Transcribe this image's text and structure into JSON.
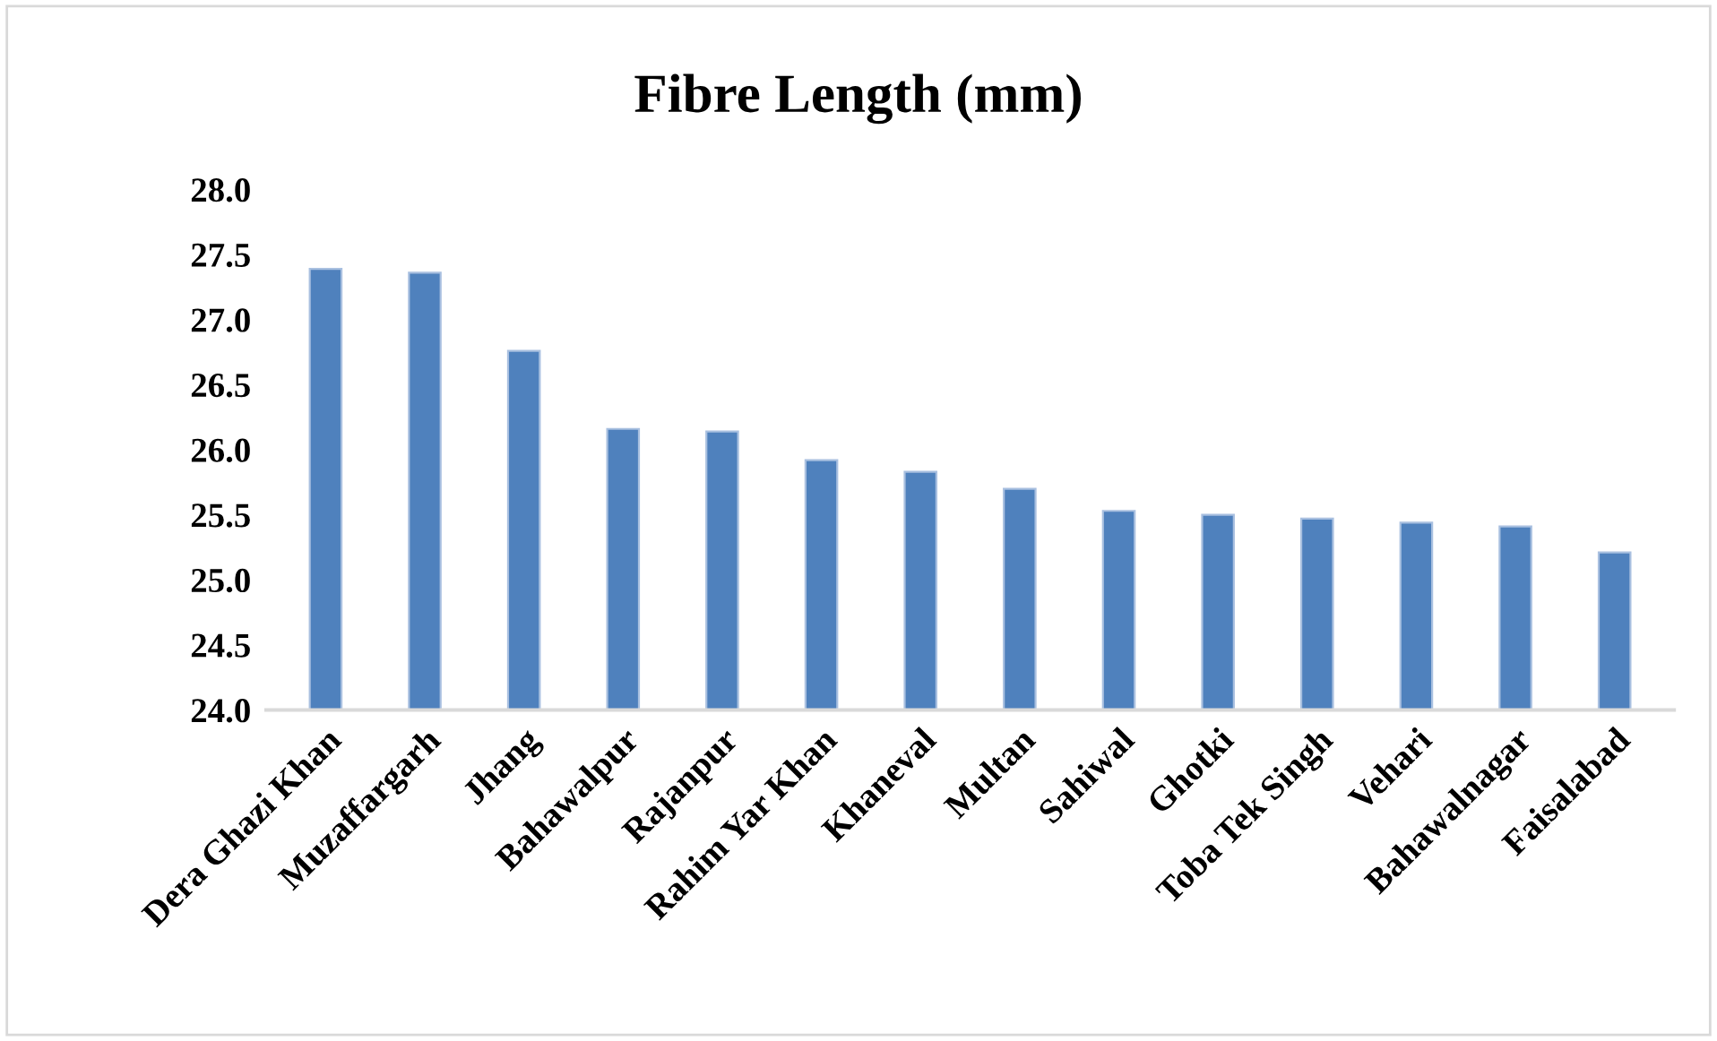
{
  "chart_data": {
    "type": "bar",
    "title": "Fibre Length (mm)",
    "categories": [
      "Dera Ghazi Khan",
      "Muzaffargarh",
      "Jhang",
      "Bahawalpur",
      "Rajanpur",
      "Rahim Yar Khan",
      "Khaneval",
      "Multan",
      "Sahiwal",
      "Ghotki",
      "Toba Tek Singh",
      "Vehari",
      "Bahawalnagar",
      "Faisalabad"
    ],
    "values": [
      27.39,
      27.36,
      26.76,
      26.16,
      26.14,
      25.92,
      25.83,
      25.7,
      25.53,
      25.5,
      25.47,
      25.44,
      25.41,
      25.21
    ],
    "color": "#4f81bd",
    "ylim": [
      24.0,
      28.0
    ],
    "yticks": [
      {
        "value": 24.0,
        "label": "24.0"
      },
      {
        "value": 24.5,
        "label": "24.5"
      },
      {
        "value": 25.0,
        "label": "25.0"
      },
      {
        "value": 25.5,
        "label": "25.5"
      },
      {
        "value": 26.0,
        "label": "26.0"
      },
      {
        "value": 26.5,
        "label": "26.5"
      },
      {
        "value": 27.0,
        "label": "27.0"
      },
      {
        "value": 27.5,
        "label": "27.5"
      },
      {
        "value": 28.0,
        "label": "28.0"
      }
    ],
    "grid": false
  }
}
